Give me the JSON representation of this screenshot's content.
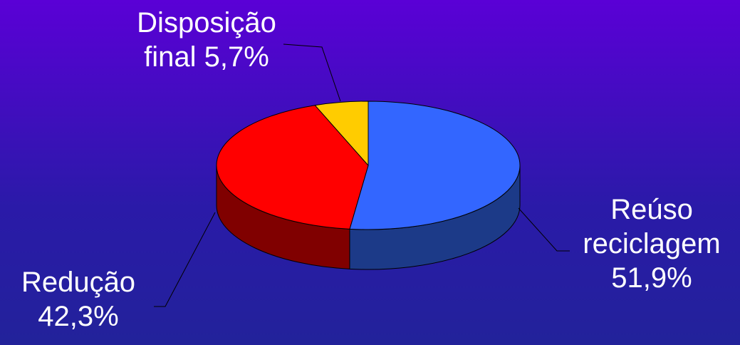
{
  "chart_data": {
    "type": "pie3d",
    "categories": [
      "Reúso reciclagem",
      "Redução",
      "Disposição final"
    ],
    "values": [
      51.9,
      42.3,
      5.7
    ],
    "value_labels": [
      "51,9%",
      "42,3%",
      "5,7%"
    ],
    "colors": [
      "#3366ff",
      "#ff0000",
      "#ffcc00"
    ],
    "side_colors": [
      "#1c3a88",
      "#800000",
      "#997a00"
    ]
  }
}
